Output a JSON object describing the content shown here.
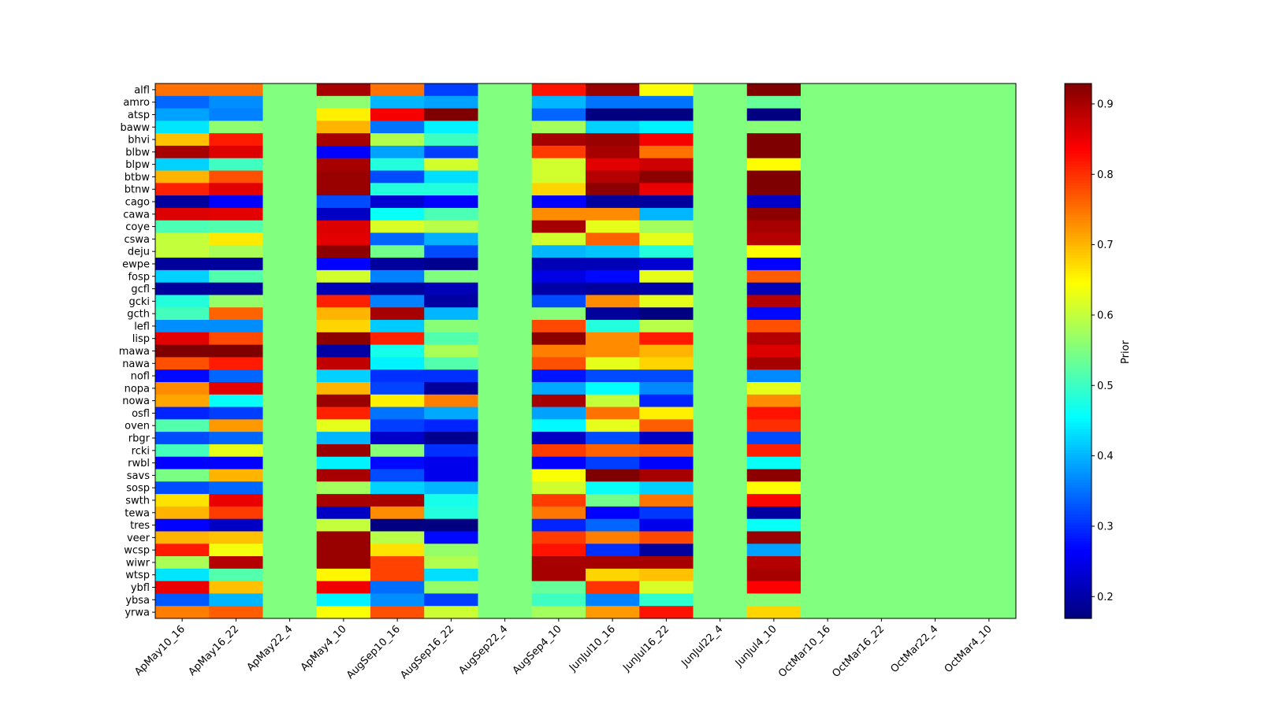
{
  "chart_data": {
    "type": "heatmap",
    "title": "",
    "xlabel": "",
    "ylabel": "",
    "colormap": "jet",
    "colorbar": {
      "label": "Prior",
      "vmin": 0.169,
      "vmax": 0.929,
      "ticks": [
        0.2,
        0.3,
        0.4,
        0.5,
        0.6,
        0.7,
        0.8,
        0.9
      ]
    },
    "columns": [
      "ApMay10_16",
      "ApMay16_22",
      "ApMay22_4",
      "ApMay4_10",
      "AugSep10_16",
      "AugSep16_22",
      "AugSep22_4",
      "AugSep4_10",
      "JunJul10_16",
      "JunJul16_22",
      "JunJul22_4",
      "JunJul4_10",
      "OctMar10_16",
      "OctMar16_22",
      "OctMar22_4",
      "OctMar4_10"
    ],
    "rows": [
      "alfl",
      "amro",
      "atsp",
      "baww",
      "bhvi",
      "blbw",
      "blpw",
      "btbw",
      "btnw",
      "cago",
      "cawa",
      "coye",
      "cswa",
      "deju",
      "ewpe",
      "fosp",
      "gcfl",
      "gcki",
      "gcth",
      "lefl",
      "lisp",
      "mawa",
      "nawa",
      "nofl",
      "nopa",
      "nowa",
      "osfl",
      "oven",
      "rbgr",
      "rcki",
      "rwbl",
      "savs",
      "sosp",
      "swth",
      "tewa",
      "tres",
      "veer",
      "wcsp",
      "wiwr",
      "wtsp",
      "ybfl",
      "ybsa",
      "yrwa"
    ],
    "values": [
      [
        0.75,
        0.75,
        0.55,
        0.9,
        0.75,
        0.31,
        0.55,
        0.82,
        0.91,
        0.64,
        0.55,
        0.93,
        0.55,
        0.55,
        0.55,
        0.55
      ],
      [
        0.34,
        0.37,
        0.55,
        0.56,
        0.4,
        0.385,
        0.55,
        0.4,
        0.35,
        0.35,
        0.55,
        0.53,
        0.55,
        0.55,
        0.55,
        0.55
      ],
      [
        0.385,
        0.36,
        0.55,
        0.655,
        0.84,
        0.93,
        0.55,
        0.34,
        0.17,
        0.17,
        0.55,
        0.17,
        0.55,
        0.55,
        0.55,
        0.55
      ],
      [
        0.435,
        0.56,
        0.55,
        0.7,
        0.35,
        0.445,
        0.55,
        0.575,
        0.42,
        0.445,
        0.55,
        0.555,
        0.55,
        0.55,
        0.55,
        0.55
      ],
      [
        0.69,
        0.815,
        0.55,
        0.9,
        0.585,
        0.5,
        0.55,
        0.9,
        0.91,
        0.84,
        0.55,
        0.93,
        0.55,
        0.55,
        0.55,
        0.55
      ],
      [
        0.9,
        0.86,
        0.55,
        0.265,
        0.385,
        0.31,
        0.55,
        0.79,
        0.9,
        0.75,
        0.55,
        0.93,
        0.55,
        0.55,
        0.55,
        0.55
      ],
      [
        0.42,
        0.5,
        0.55,
        0.9,
        0.48,
        0.61,
        0.55,
        0.61,
        0.855,
        0.87,
        0.55,
        0.645,
        0.55,
        0.55,
        0.55,
        0.55
      ],
      [
        0.7,
        0.775,
        0.55,
        0.91,
        0.32,
        0.43,
        0.55,
        0.61,
        0.89,
        0.92,
        0.55,
        0.93,
        0.55,
        0.55,
        0.55,
        0.55
      ],
      [
        0.81,
        0.855,
        0.55,
        0.91,
        0.48,
        0.48,
        0.55,
        0.675,
        0.92,
        0.85,
        0.55,
        0.93,
        0.55,
        0.55,
        0.55,
        0.55
      ],
      [
        0.19,
        0.265,
        0.55,
        0.32,
        0.23,
        0.265,
        0.55,
        0.265,
        0.19,
        0.19,
        0.55,
        0.225,
        0.55,
        0.55,
        0.55,
        0.55
      ],
      [
        0.86,
        0.855,
        0.55,
        0.22,
        0.46,
        0.51,
        0.55,
        0.73,
        0.73,
        0.4,
        0.55,
        0.92,
        0.55,
        0.55,
        0.55,
        0.55
      ],
      [
        0.51,
        0.515,
        0.55,
        0.86,
        0.615,
        0.59,
        0.55,
        0.9,
        0.625,
        0.575,
        0.55,
        0.9,
        0.55,
        0.55,
        0.55,
        0.55
      ],
      [
        0.6,
        0.66,
        0.55,
        0.855,
        0.34,
        0.395,
        0.55,
        0.61,
        0.76,
        0.625,
        0.55,
        0.89,
        0.55,
        0.55,
        0.55,
        0.55
      ],
      [
        0.6,
        0.58,
        0.55,
        0.92,
        0.54,
        0.32,
        0.55,
        0.4,
        0.41,
        0.48,
        0.55,
        0.645,
        0.55,
        0.55,
        0.55,
        0.55
      ],
      [
        0.19,
        0.19,
        0.55,
        0.265,
        0.19,
        0.18,
        0.55,
        0.21,
        0.21,
        0.23,
        0.55,
        0.265,
        0.55,
        0.55,
        0.55,
        0.55
      ],
      [
        0.42,
        0.515,
        0.55,
        0.61,
        0.36,
        0.55,
        0.55,
        0.245,
        0.27,
        0.625,
        0.55,
        0.765,
        0.55,
        0.55,
        0.55,
        0.55
      ],
      [
        0.19,
        0.19,
        0.55,
        0.21,
        0.19,
        0.21,
        0.55,
        0.2,
        0.19,
        0.2,
        0.55,
        0.21,
        0.55,
        0.55,
        0.55,
        0.55
      ],
      [
        0.48,
        0.565,
        0.55,
        0.81,
        0.36,
        0.195,
        0.55,
        0.32,
        0.73,
        0.625,
        0.55,
        0.89,
        0.55,
        0.55,
        0.55,
        0.55
      ],
      [
        0.505,
        0.76,
        0.55,
        0.7,
        0.9,
        0.4,
        0.55,
        0.555,
        0.19,
        0.17,
        0.55,
        0.27,
        0.55,
        0.55,
        0.55,
        0.55
      ],
      [
        0.37,
        0.37,
        0.55,
        0.675,
        0.415,
        0.555,
        0.55,
        0.78,
        0.48,
        0.59,
        0.55,
        0.775,
        0.55,
        0.55,
        0.55,
        0.55
      ],
      [
        0.855,
        0.78,
        0.55,
        0.92,
        0.81,
        0.515,
        0.55,
        0.92,
        0.73,
        0.815,
        0.55,
        0.89,
        0.55,
        0.55,
        0.55,
        0.55
      ],
      [
        0.93,
        0.93,
        0.55,
        0.195,
        0.47,
        0.58,
        0.55,
        0.74,
        0.73,
        0.7,
        0.55,
        0.86,
        0.55,
        0.55,
        0.55,
        0.55
      ],
      [
        0.775,
        0.815,
        0.55,
        0.88,
        0.445,
        0.515,
        0.55,
        0.775,
        0.625,
        0.675,
        0.55,
        0.9,
        0.55,
        0.55,
        0.55,
        0.55
      ],
      [
        0.27,
        0.34,
        0.55,
        0.42,
        0.3,
        0.3,
        0.55,
        0.28,
        0.32,
        0.32,
        0.55,
        0.365,
        0.55,
        0.55,
        0.55,
        0.55
      ],
      [
        0.73,
        0.855,
        0.55,
        0.7,
        0.315,
        0.19,
        0.55,
        0.39,
        0.455,
        0.365,
        0.55,
        0.625,
        0.55,
        0.55,
        0.55,
        0.55
      ],
      [
        0.71,
        0.46,
        0.55,
        0.91,
        0.655,
        0.74,
        0.55,
        0.9,
        0.6,
        0.29,
        0.55,
        0.73,
        0.55,
        0.55,
        0.55,
        0.55
      ],
      [
        0.29,
        0.31,
        0.55,
        0.81,
        0.35,
        0.39,
        0.55,
        0.385,
        0.75,
        0.655,
        0.55,
        0.82,
        0.55,
        0.55,
        0.55,
        0.55
      ],
      [
        0.515,
        0.72,
        0.55,
        0.625,
        0.31,
        0.29,
        0.55,
        0.45,
        0.625,
        0.765,
        0.55,
        0.8,
        0.55,
        0.55,
        0.55,
        0.55
      ],
      [
        0.32,
        0.34,
        0.55,
        0.4,
        0.225,
        0.18,
        0.55,
        0.22,
        0.32,
        0.22,
        0.55,
        0.32,
        0.55,
        0.55,
        0.55,
        0.55
      ],
      [
        0.505,
        0.625,
        0.55,
        0.91,
        0.555,
        0.3,
        0.55,
        0.79,
        0.76,
        0.77,
        0.55,
        0.81,
        0.55,
        0.55,
        0.55,
        0.55
      ],
      [
        0.265,
        0.265,
        0.55,
        0.445,
        0.27,
        0.25,
        0.55,
        0.265,
        0.31,
        0.265,
        0.55,
        0.46,
        0.55,
        0.55,
        0.55,
        0.55
      ],
      [
        0.545,
        0.7,
        0.55,
        0.9,
        0.32,
        0.25,
        0.55,
        0.64,
        0.93,
        0.9,
        0.55,
        0.92,
        0.55,
        0.55,
        0.55,
        0.55
      ],
      [
        0.32,
        0.34,
        0.55,
        0.575,
        0.42,
        0.4,
        0.55,
        0.61,
        0.46,
        0.42,
        0.55,
        0.645,
        0.55,
        0.55,
        0.55,
        0.55
      ],
      [
        0.665,
        0.85,
        0.55,
        0.9,
        0.9,
        0.47,
        0.55,
        0.79,
        0.54,
        0.745,
        0.55,
        0.83,
        0.55,
        0.55,
        0.55,
        0.55
      ],
      [
        0.7,
        0.79,
        0.55,
        0.22,
        0.73,
        0.48,
        0.55,
        0.745,
        0.265,
        0.305,
        0.55,
        0.195,
        0.55,
        0.55,
        0.55,
        0.55
      ],
      [
        0.265,
        0.22,
        0.55,
        0.6,
        0.17,
        0.17,
        0.55,
        0.29,
        0.34,
        0.25,
        0.55,
        0.46,
        0.55,
        0.55,
        0.55,
        0.55
      ],
      [
        0.7,
        0.69,
        0.55,
        0.91,
        0.59,
        0.27,
        0.55,
        0.79,
        0.74,
        0.78,
        0.55,
        0.91,
        0.55,
        0.55,
        0.55,
        0.55
      ],
      [
        0.815,
        0.635,
        0.55,
        0.91,
        0.665,
        0.565,
        0.55,
        0.82,
        0.3,
        0.19,
        0.55,
        0.385,
        0.55,
        0.55,
        0.55,
        0.55
      ],
      [
        0.58,
        0.89,
        0.55,
        0.91,
        0.785,
        0.585,
        0.55,
        0.9,
        0.9,
        0.9,
        0.55,
        0.89,
        0.55,
        0.55,
        0.55,
        0.55
      ],
      [
        0.435,
        0.515,
        0.55,
        0.65,
        0.785,
        0.43,
        0.55,
        0.9,
        0.675,
        0.69,
        0.55,
        0.9,
        0.55,
        0.55,
        0.55,
        0.55
      ],
      [
        0.85,
        0.69,
        0.55,
        0.845,
        0.345,
        0.565,
        0.55,
        0.53,
        0.795,
        0.615,
        0.55,
        0.835,
        0.55,
        0.55,
        0.55,
        0.55
      ],
      [
        0.33,
        0.4,
        0.55,
        0.445,
        0.37,
        0.31,
        0.55,
        0.5,
        0.36,
        0.49,
        0.55,
        0.555,
        0.55,
        0.55,
        0.55,
        0.55
      ],
      [
        0.74,
        0.765,
        0.55,
        0.64,
        0.775,
        0.605,
        0.55,
        0.575,
        0.72,
        0.82,
        0.55,
        0.675,
        0.55,
        0.55,
        0.55,
        0.55
      ]
    ]
  }
}
